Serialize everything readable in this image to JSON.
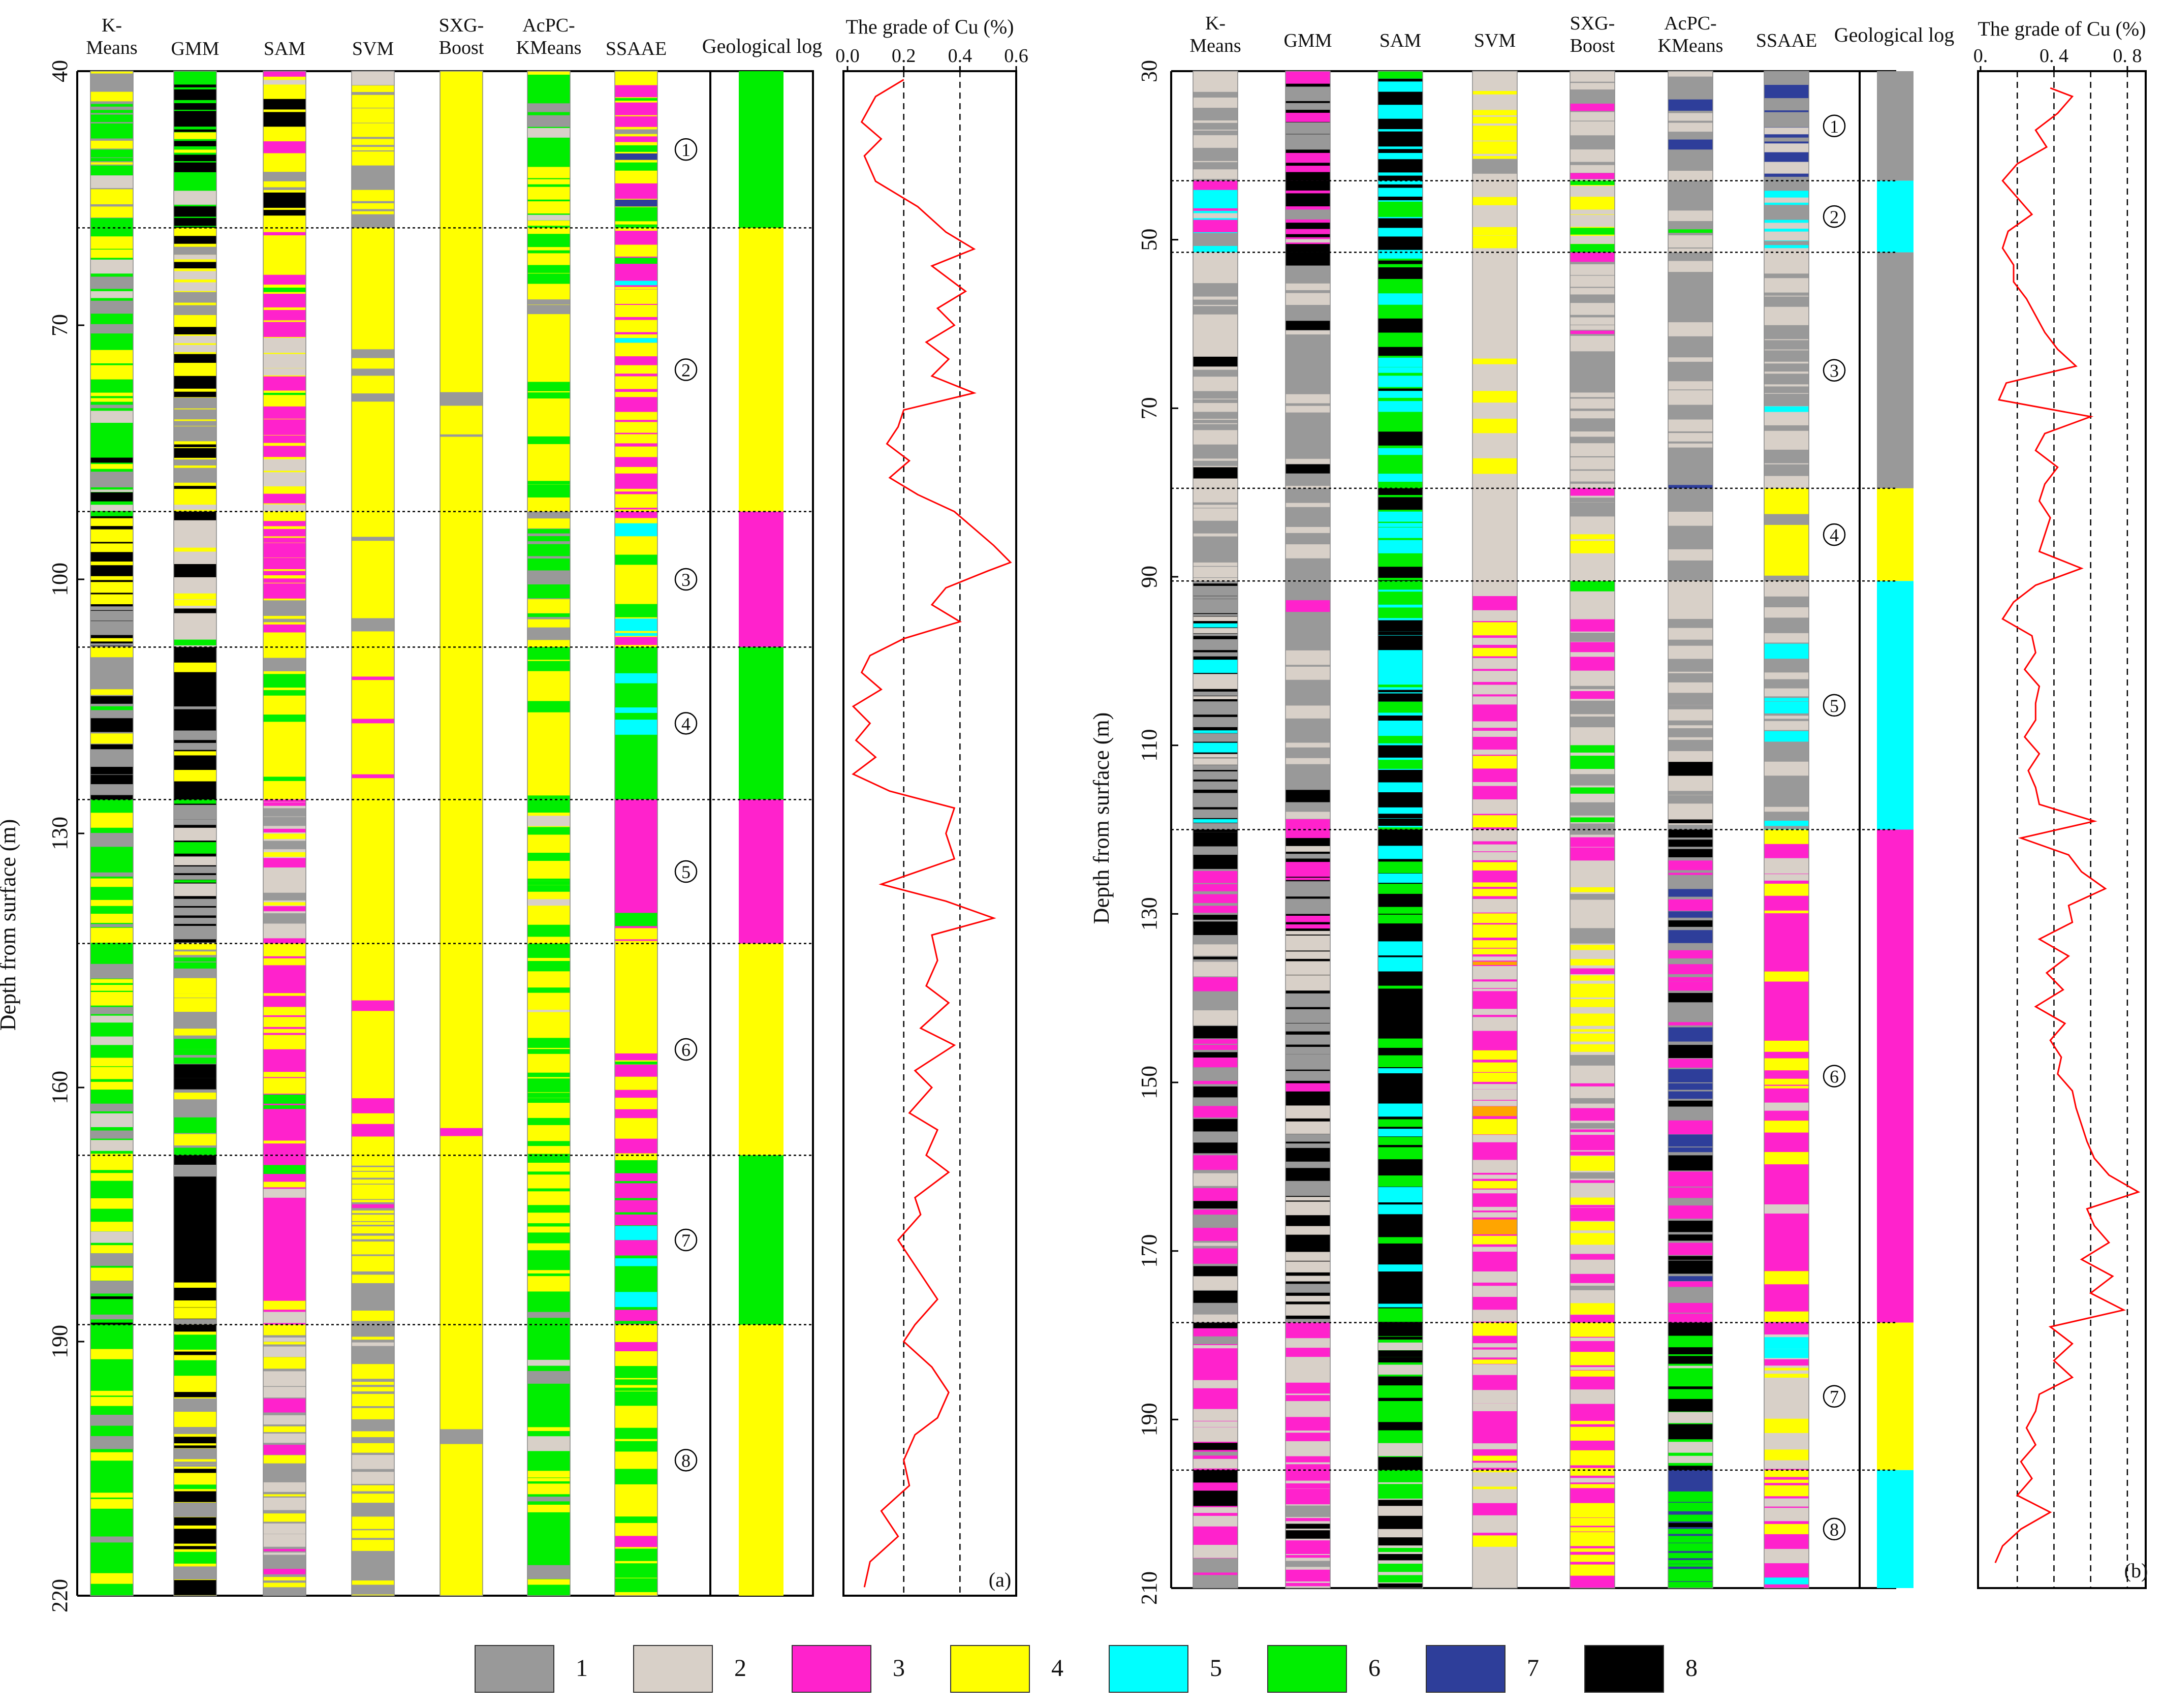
{
  "legend": [
    {
      "id": 1,
      "label": "1",
      "color": "#999999"
    },
    {
      "id": 2,
      "label": "2",
      "color": "#D8D0C8"
    },
    {
      "id": 3,
      "label": "3",
      "color": "#FF22CC"
    },
    {
      "id": 4,
      "label": "4",
      "color": "#FFFF00"
    },
    {
      "id": 5,
      "label": "5",
      "color": "#00FFFF"
    },
    {
      "id": 6,
      "label": "6",
      "color": "#00EE00"
    },
    {
      "id": 7,
      "label": "7",
      "color": "#2E3E9A"
    },
    {
      "id": 8,
      "label": "8",
      "color": "#000000"
    }
  ],
  "chart_data": [
    {
      "type": "well-log",
      "panel_label": "(a)",
      "ylabel": "Depth from surface (m)",
      "ylim": [
        40,
        220
      ],
      "yticks": [
        "40",
        "70",
        "100",
        "130",
        "160",
        "190",
        "220"
      ],
      "methods": [
        "K-Means",
        "GMM",
        "SAM",
        "SVM",
        "SXG-Boost",
        "AcPC-KMeans",
        "SSAAE"
      ],
      "geolog_title": "Geological log",
      "zones": [
        {
          "label": "①",
          "top": 40,
          "bottom": 58.5,
          "cls": 6
        },
        {
          "label": "②",
          "top": 58.5,
          "bottom": 92,
          "cls": 4
        },
        {
          "label": "③",
          "top": 92,
          "bottom": 108,
          "cls": 3
        },
        {
          "label": "④",
          "top": 108,
          "bottom": 126,
          "cls": 6
        },
        {
          "label": "⑤",
          "top": 126,
          "bottom": 143,
          "cls": 3
        },
        {
          "label": "⑥",
          "top": 143,
          "bottom": 168,
          "cls": 4
        },
        {
          "label": "⑦",
          "top": 168,
          "bottom": 188,
          "cls": 6
        },
        {
          "label": "⑧",
          "top": 188,
          "bottom": 220,
          "cls": 4
        }
      ],
      "grade": {
        "title": "The grade of Cu (%)",
        "xlim": [
          0,
          0.6
        ],
        "xticks": [
          "0.0",
          "0.2",
          "0.4",
          "0.6"
        ],
        "dashed_at": [
          0.2,
          0.4
        ],
        "depth": [
          41,
          43,
          46,
          48,
          50,
          53,
          56,
          59,
          61,
          63,
          66,
          68,
          70,
          72,
          74,
          76,
          78,
          80,
          82,
          84,
          86,
          88,
          90,
          92,
          94,
          96,
          98,
          99,
          101,
          103,
          105,
          107,
          109,
          111,
          113,
          115,
          117,
          119,
          121,
          123,
          125,
          127,
          130,
          133,
          136,
          138,
          140,
          142,
          145,
          148,
          150,
          153,
          155,
          158,
          160,
          163,
          165,
          168,
          170,
          173,
          175,
          178,
          180,
          183,
          185,
          188,
          190,
          193,
          196,
          199,
          201,
          204,
          207,
          210,
          213,
          216,
          219
        ],
        "value": [
          0.2,
          0.1,
          0.05,
          0.12,
          0.06,
          0.1,
          0.25,
          0.35,
          0.45,
          0.3,
          0.42,
          0.32,
          0.38,
          0.28,
          0.36,
          0.3,
          0.45,
          0.2,
          0.18,
          0.14,
          0.22,
          0.15,
          0.25,
          0.38,
          0.45,
          0.52,
          0.58,
          0.5,
          0.35,
          0.3,
          0.4,
          0.2,
          0.08,
          0.05,
          0.12,
          0.02,
          0.08,
          0.03,
          0.1,
          0.02,
          0.15,
          0.38,
          0.35,
          0.38,
          0.12,
          0.35,
          0.52,
          0.3,
          0.32,
          0.28,
          0.36,
          0.26,
          0.38,
          0.24,
          0.3,
          0.22,
          0.32,
          0.28,
          0.36,
          0.24,
          0.26,
          0.18,
          0.22,
          0.28,
          0.32,
          0.24,
          0.2,
          0.3,
          0.36,
          0.32,
          0.24,
          0.2,
          0.22,
          0.12,
          0.18,
          0.08,
          0.06
        ]
      }
    },
    {
      "type": "well-log",
      "panel_label": "(b)",
      "ylabel": "Depth from surface (m)",
      "ylim": [
        30,
        210
      ],
      "yticks": [
        "30",
        "50",
        "70",
        "90",
        "110",
        "130",
        "150",
        "170",
        "190",
        "210"
      ],
      "methods": [
        "K-Means",
        "GMM",
        "SAM",
        "SVM",
        "SXG-Boost",
        "AcPC-KMeans",
        "SSAAE"
      ],
      "geolog_title": "Geological log",
      "zones": [
        {
          "label": "①",
          "top": 30,
          "bottom": 43,
          "cls": 1
        },
        {
          "label": "②",
          "top": 43,
          "bottom": 51.5,
          "cls": 5
        },
        {
          "label": "③",
          "top": 51.5,
          "bottom": 79.5,
          "cls": 1
        },
        {
          "label": "④",
          "top": 79.5,
          "bottom": 90.5,
          "cls": 4
        },
        {
          "label": "⑤",
          "top": 90.5,
          "bottom": 120,
          "cls": 5
        },
        {
          "label": "⑥",
          "top": 120,
          "bottom": 178.5,
          "cls": 3
        },
        {
          "label": "⑦",
          "top": 178.5,
          "bottom": 196,
          "cls": 4
        },
        {
          "label": "⑧",
          "top": 196,
          "bottom": 210,
          "cls": 5
        }
      ],
      "grade": {
        "title": "The grade of Cu (%)",
        "xlim": [
          0,
          0.9
        ],
        "xticks": [
          "0.",
          "0. 4",
          "0. 8"
        ],
        "dashed_at": [
          0.2,
          0.4,
          0.6,
          0.8
        ],
        "depth": [
          32,
          33,
          35,
          37,
          39,
          41,
          43,
          45,
          47,
          49,
          51,
          53,
          55,
          57,
          59,
          61,
          63,
          65,
          67,
          69,
          71,
          73,
          75,
          77,
          79,
          81,
          83,
          85,
          87,
          89,
          91,
          93,
          95,
          97,
          99,
          101,
          103,
          105,
          107,
          109,
          111,
          113,
          115,
          117,
          119,
          121,
          123,
          125,
          127,
          129,
          131,
          133,
          135,
          137,
          139,
          141,
          143,
          145,
          147,
          149,
          151,
          153,
          155,
          157,
          159,
          161,
          163,
          165,
          167,
          169,
          171,
          173,
          175,
          177,
          179,
          181,
          183,
          185,
          187,
          189,
          191,
          193,
          195,
          197,
          199,
          201,
          203,
          205,
          207
        ],
        "value": [
          0.38,
          0.5,
          0.42,
          0.3,
          0.36,
          0.2,
          0.12,
          0.2,
          0.28,
          0.15,
          0.12,
          0.18,
          0.18,
          0.25,
          0.3,
          0.35,
          0.42,
          0.52,
          0.14,
          0.1,
          0.6,
          0.35,
          0.3,
          0.42,
          0.35,
          0.32,
          0.38,
          0.35,
          0.32,
          0.55,
          0.3,
          0.18,
          0.12,
          0.28,
          0.3,
          0.24,
          0.32,
          0.3,
          0.3,
          0.24,
          0.32,
          0.26,
          0.3,
          0.32,
          0.62,
          0.22,
          0.48,
          0.55,
          0.68,
          0.48,
          0.5,
          0.32,
          0.48,
          0.36,
          0.45,
          0.3,
          0.46,
          0.38,
          0.44,
          0.42,
          0.5,
          0.52,
          0.55,
          0.58,
          0.62,
          0.7,
          0.86,
          0.58,
          0.62,
          0.7,
          0.55,
          0.72,
          0.6,
          0.78,
          0.38,
          0.5,
          0.4,
          0.5,
          0.32,
          0.3,
          0.25,
          0.3,
          0.22,
          0.28,
          0.2,
          0.38,
          0.22,
          0.12,
          0.08
        ]
      }
    }
  ]
}
